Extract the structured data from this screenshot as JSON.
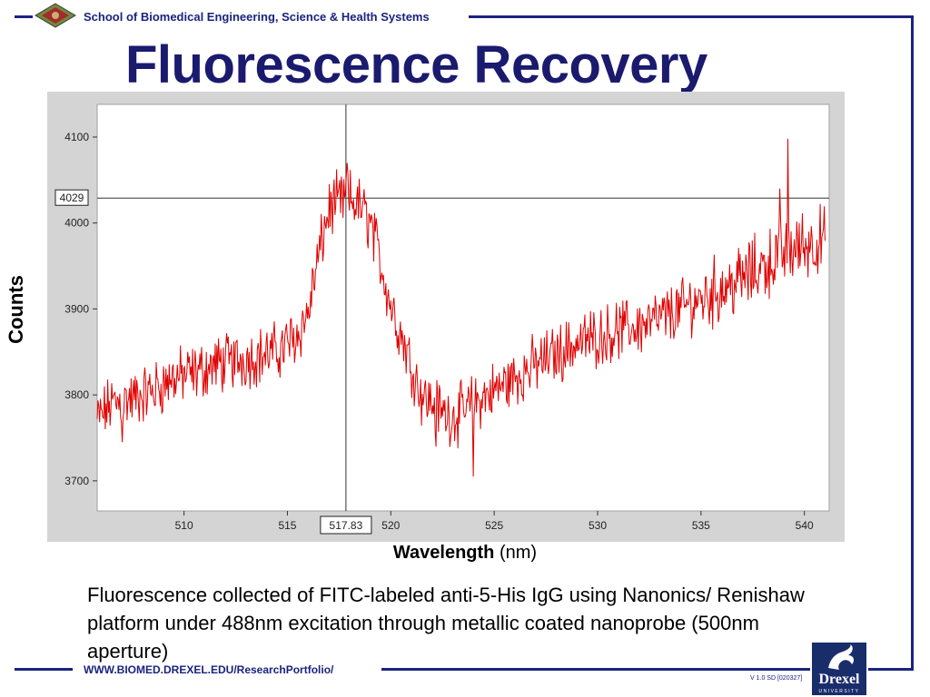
{
  "header": {
    "school": "School of Biomedical Engineering, Science & Health Systems"
  },
  "slide": {
    "title": "Fluorescence Recovery"
  },
  "chart_data": {
    "type": "line",
    "ylabel": "Counts",
    "xlabel_bold": "Wavelength",
    "xlabel_unit": "(nm)",
    "xlim": [
      505.8,
      541.2
    ],
    "ylim": [
      3665,
      4138
    ],
    "x_ticks": [
      510,
      515,
      520,
      525,
      530,
      535,
      540
    ],
    "y_ticks": [
      3700,
      3800,
      3900,
      4000,
      4100
    ],
    "cursor": {
      "x": 517.83,
      "y": 4029,
      "x_label": "517.83",
      "y_label": "4029"
    },
    "line_color": "#e00000",
    "grid": false,
    "series": [
      {
        "x": [
          505.8,
          506.5,
          507.5,
          508.5,
          509.5,
          510.5,
          511.5,
          512.5,
          513.5,
          514.5,
          515.5,
          516,
          516.5,
          517,
          517.5,
          518,
          518.5,
          519,
          519.5,
          520,
          520.5,
          521,
          521.5,
          522,
          522.5,
          523,
          523.5,
          524,
          525,
          526,
          527,
          528,
          529,
          530,
          531,
          532,
          533,
          534,
          535,
          536,
          537,
          538,
          539,
          540,
          541
        ],
        "y": [
          3770,
          3790,
          3795,
          3805,
          3820,
          3825,
          3835,
          3840,
          3845,
          3850,
          3870,
          3895,
          3960,
          4015,
          4025,
          4028,
          4020,
          4000,
          3955,
          3905,
          3870,
          3835,
          3800,
          3790,
          3780,
          3775,
          3780,
          3790,
          3805,
          3820,
          3835,
          3848,
          3860,
          3868,
          3875,
          3880,
          3888,
          3900,
          3912,
          3924,
          3935,
          3950,
          3965,
          3975,
          3980
        ]
      }
    ],
    "spikes": [
      {
        "x": 524.0,
        "y": 3705
      },
      {
        "x": 517.9,
        "y": 4070
      },
      {
        "x": 538.8,
        "y": 4040
      },
      {
        "x": 539.2,
        "y": 4098
      },
      {
        "x": 507.0,
        "y": 3745
      },
      {
        "x": 522.2,
        "y": 3740
      }
    ]
  },
  "caption": "Fluorescence collected of FITC-labeled anti-5-His IgG using Nanonics/ Renishaw platform under 488nm excitation through metallic coated nanoprobe (500nm aperture)",
  "footer": {
    "url": "WWW.BIOMED.DREXEL.EDU/ResearchPortfolio/",
    "version": "V 1.0 SD [020327]"
  },
  "logo": {
    "word": "Drexel",
    "sub": "UNIVERSITY"
  }
}
